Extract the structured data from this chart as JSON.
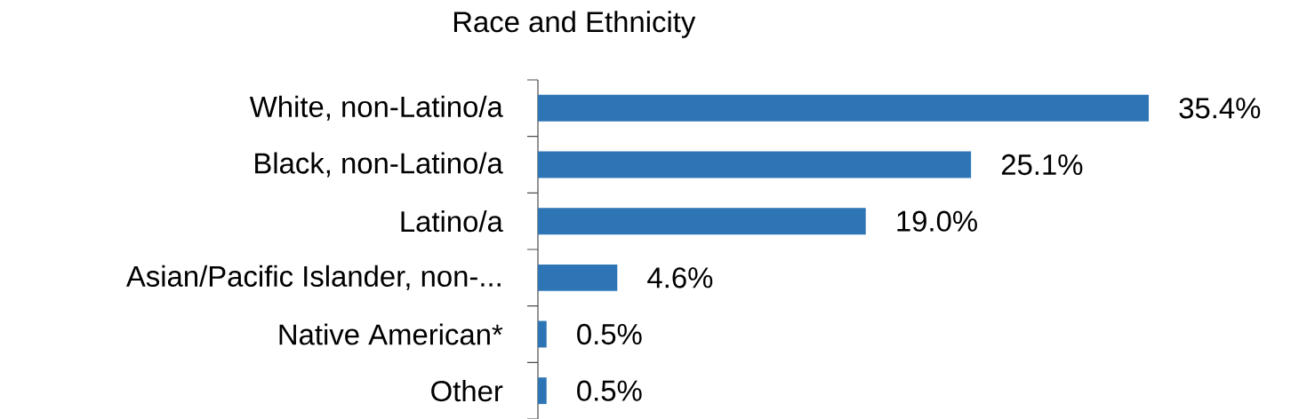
{
  "chart_data": {
    "type": "bar",
    "title": "Race and Ethnicity",
    "orientation": "horizontal",
    "categories": [
      "White, non-Latino/a",
      "Black, non-Latino/a",
      "Latino/a",
      "Asian/Pacific Islander, non-...",
      "Native American*",
      "Other"
    ],
    "values": [
      35.4,
      25.1,
      19.0,
      4.6,
      0.5,
      0.5
    ],
    "value_labels": [
      "35.4%",
      "25.1%",
      "19.0%",
      "4.6%",
      "0.5%",
      "0.5%"
    ],
    "color": "#2e75b6"
  }
}
